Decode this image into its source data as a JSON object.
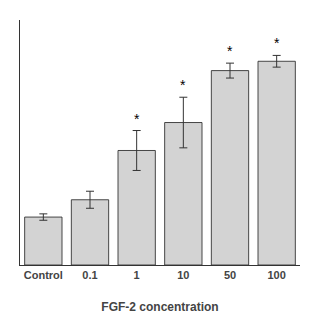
{
  "chart_data": {
    "type": "bar",
    "xlabel": "FGF-2 concentration",
    "categories": [
      "Control",
      "0.1",
      "1",
      "10",
      "50",
      "100"
    ],
    "values": [
      0.18,
      0.245,
      0.43,
      0.535,
      0.73,
      0.765
    ],
    "errors": [
      0.012,
      0.032,
      0.075,
      0.095,
      0.028,
      0.022
    ],
    "color": "#d3d3d3",
    "ylim": [
      0,
      0.92
    ],
    "grid": false,
    "tick_labels": "x",
    "annotations": [
      {
        "text": "*",
        "category": "1"
      },
      {
        "text": "*",
        "category": "10"
      },
      {
        "text": "*",
        "category": "50"
      },
      {
        "text": "*",
        "category": "100"
      }
    ]
  }
}
